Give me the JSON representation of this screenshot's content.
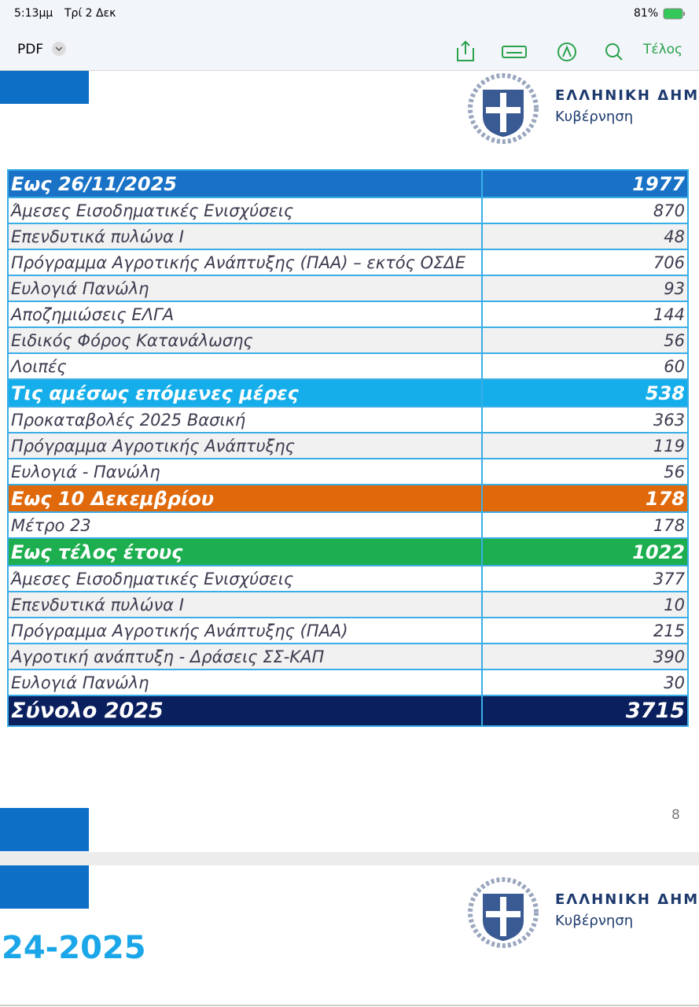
{
  "status_bar": {
    "time": "5:13μμ",
    "date": "Τρί 2 Δεκ",
    "battery": "81%"
  },
  "toolbar": {
    "view": "PDF",
    "done": "Τέλος"
  },
  "page1": {
    "header": {
      "country": "ΕΛΛΗΝΙΚΗ ΔΗΜ",
      "government": "Κυβέρνηση"
    },
    "table": {
      "sections": [
        {
          "title": "Εως 26/11/2025",
          "total": 1977,
          "rows": [
            [
              "Άμεσες Εισοδηματικές Ενισχύσεις",
              870
            ],
            [
              "Επενδυτικά πυλώνα Ι",
              48
            ],
            [
              "Πρόγραμμα Αγροτικής Ανάπτυξης (ΠΑΑ) – εκτός ΟΣΔΕ",
              706
            ],
            [
              "Ευλογιά Πανώλη",
              93
            ],
            [
              "Αποζημιώσεις ΕΛΓΑ",
              144
            ],
            [
              "Ειδικός Φόρος Κατανάλωσης",
              56
            ],
            [
              "Λοιπές",
              60
            ]
          ]
        },
        {
          "title": "Τις αμέσως επόμενες μέρες",
          "total": 538,
          "rows": [
            [
              "Προκαταβολές 2025 Βασική",
              363
            ],
            [
              "Πρόγραμμα Αγροτικής Ανάπτυξης",
              119
            ],
            [
              "Ευλογιά - Πανώλη",
              56
            ]
          ]
        },
        {
          "title": "Εως 10 Δεκεμβρίου",
          "total": 178,
          "rows": [
            [
              "Μέτρο 23",
              178
            ]
          ]
        },
        {
          "title": "Εως τέλος έτους",
          "total": 1022,
          "rows": [
            [
              "Άμεσες Εισοδηματικές Ενισχύσεις",
              377
            ],
            [
              "Επενδυτικά πυλώνα Ι",
              10
            ],
            [
              "Πρόγραμμα Αγροτικής Ανάπτυξης (ΠΑΑ)",
              215
            ],
            [
              "Αγροτική ανάπτυξη - Δράσεις ΣΣ-ΚΑΠ",
              390
            ],
            [
              "Ευλογιά Πανώλη",
              30
            ]
          ]
        }
      ],
      "total": {
        "label": "Σύνολο 2025",
        "value": 3715
      }
    },
    "page_number": "8"
  },
  "page2": {
    "header": {
      "country": "ΕΛΛΗΝΙΚΗ ΔΗΜ",
      "government": "Κυβέρνηση"
    },
    "title": "24-2025"
  }
}
